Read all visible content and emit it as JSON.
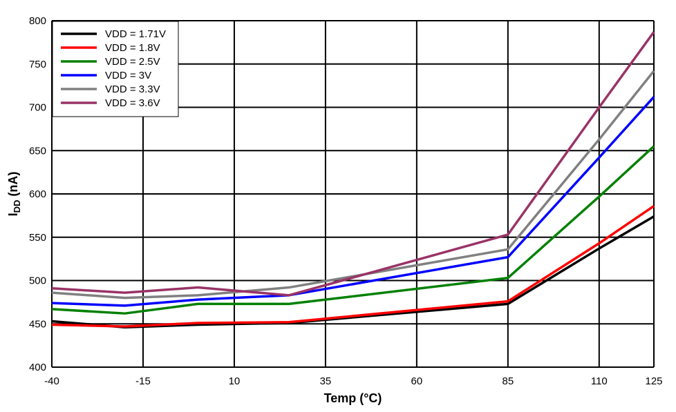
{
  "chart_data": {
    "type": "line",
    "title": "",
    "xlabel": "Temp (°C)",
    "ylabel_main": "I",
    "ylabel_sub": "DD",
    "ylabel_unit": " (nA)",
    "xlim": [
      -40,
      125
    ],
    "ylim": [
      400,
      800
    ],
    "xticks": [
      -40,
      -15,
      10,
      35,
      60,
      85,
      110,
      125
    ],
    "yticks": [
      400,
      450,
      500,
      550,
      600,
      650,
      700,
      750,
      800
    ],
    "grid": true,
    "legend_position": "top-left",
    "x": [
      -40,
      -20,
      0,
      25,
      85,
      110,
      125
    ],
    "series": [
      {
        "name": "VDD = 1.71V",
        "color": "#000000",
        "values": [
          453,
          446,
          449,
          451,
          473,
          537,
          574
        ]
      },
      {
        "name": "VDD = 1.8V",
        "color": "#ff0000",
        "values": [
          449,
          447,
          451,
          452,
          476,
          543,
          586
        ]
      },
      {
        "name": "VDD = 2.5V",
        "color": "#008000",
        "values": [
          467,
          462,
          473,
          473,
          503,
          597,
          655
        ]
      },
      {
        "name": "VDD = 3V",
        "color": "#0000ff",
        "values": [
          474,
          471,
          478,
          483,
          527,
          642,
          712
        ]
      },
      {
        "name": "VDD = 3.3V",
        "color": "#808080",
        "values": [
          486,
          480,
          483,
          492,
          536,
          663,
          742
        ]
      },
      {
        "name": "VDD = 3.6V",
        "color": "#993366",
        "values": [
          491,
          486,
          492,
          483,
          553,
          700,
          787
        ]
      }
    ]
  }
}
